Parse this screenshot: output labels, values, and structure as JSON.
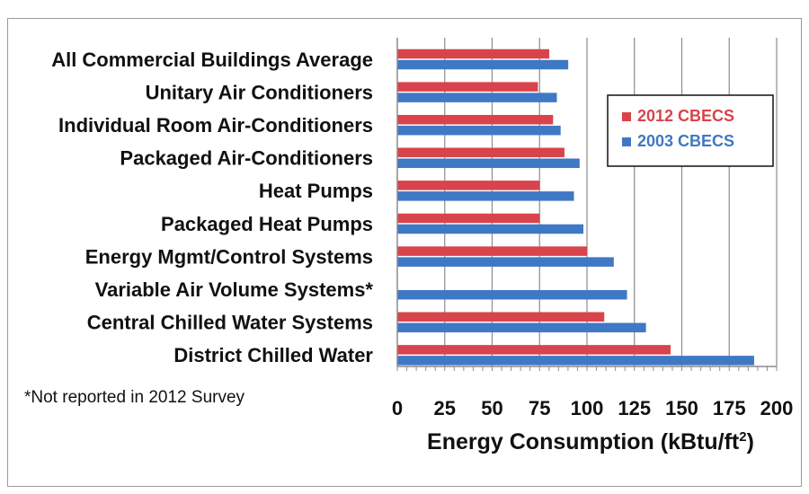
{
  "chart_data": {
    "type": "bar",
    "orientation": "horizontal",
    "categories": [
      "All Commercial Buildings Average",
      "Unitary Air Conditioners",
      "Individual Room Air-Conditioners",
      "Packaged Air-Conditioners",
      "Heat Pumps",
      "Packaged Heat Pumps",
      "Energy Mgmt/Control Systems",
      "Variable Air Volume Systems*",
      "Central Chilled Water Systems",
      "District Chilled Water"
    ],
    "series": [
      {
        "name": "2012 CBECS",
        "color": "#d9434b",
        "values": [
          80,
          74,
          82,
          88,
          75,
          75,
          100,
          null,
          109,
          144
        ]
      },
      {
        "name": "2003 CBECS",
        "color": "#3f78c4",
        "values": [
          90,
          84,
          86,
          96,
          93,
          98,
          114,
          121,
          131,
          188
        ]
      }
    ],
    "xlabel_main": "Energy Consumption (kBtu/ft",
    "xlabel_sup": "2",
    "xlabel_end": ")",
    "xlim": [
      0,
      200
    ],
    "xticks": [
      0,
      25,
      50,
      75,
      100,
      125,
      150,
      175,
      200
    ],
    "grid": "vertical",
    "legend_position": "right",
    "footnote": "*Not reported in 2012 Survey"
  }
}
